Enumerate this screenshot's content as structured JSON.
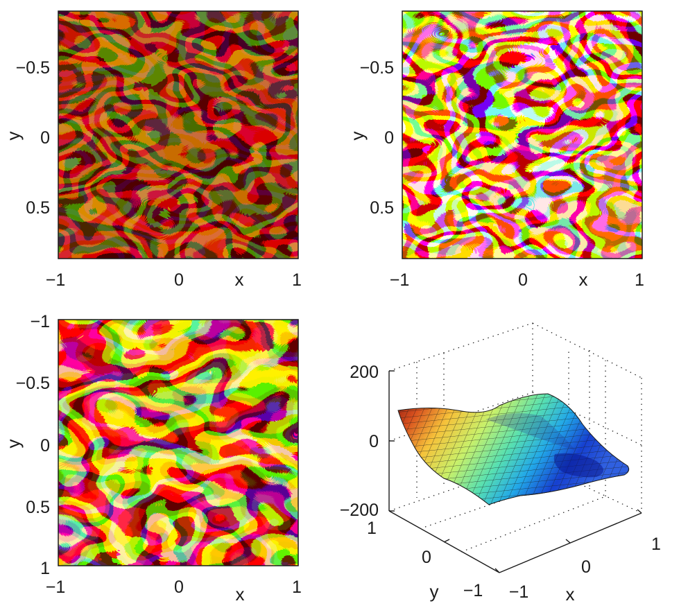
{
  "colors": {
    "axis": "#1a1a1a",
    "background": "#ffffff",
    "hot_colormap": [
      "#200000",
      "#7a0b05",
      "#c3380c",
      "#f08a1c",
      "#fce37a",
      "#ffffff"
    ],
    "jet_colormap": [
      "#00008f",
      "#0050ff",
      "#00d8ff",
      "#7fff7f",
      "#ffe000",
      "#ff3000",
      "#800000"
    ]
  },
  "chart_data": [
    {
      "type": "heatmap",
      "panel": "top-left",
      "description_colormap": "hot",
      "title": "",
      "xlabel": "x",
      "ylabel": "y",
      "xlim": [
        -1,
        1
      ],
      "ylim": [
        0.85,
        -0.85
      ],
      "x_ticks": [
        "−1",
        "0",
        "1"
      ],
      "y_ticks": [
        "−0.5",
        "0",
        "0.5"
      ],
      "intensity": "low",
      "grid": false
    },
    {
      "type": "heatmap",
      "panel": "top-right",
      "description_colormap": "hot",
      "title": "",
      "xlabel": "x",
      "ylabel": "y",
      "xlim": [
        -1,
        1
      ],
      "ylim": [
        0.85,
        -0.85
      ],
      "x_ticks": [
        "−1",
        "0",
        "1"
      ],
      "y_ticks": [
        "−0.5",
        "0",
        "0.5"
      ],
      "intensity": "high",
      "grid": false
    },
    {
      "type": "heatmap",
      "panel": "bottom-left",
      "description_colormap": "hot",
      "title": "",
      "xlabel": "x",
      "ylabel": "y",
      "xlim": [
        -1,
        1
      ],
      "ylim": [
        1,
        -1
      ],
      "x_ticks": [
        "−1",
        "0",
        "1"
      ],
      "y_ticks": [
        "−1",
        "−0.5",
        "0",
        "0.5",
        "1"
      ],
      "intensity": "wrapped",
      "grid": false
    },
    {
      "type": "surface",
      "panel": "bottom-right",
      "description_colormap": "jet",
      "title": "",
      "xlabel": "x",
      "ylabel": "y",
      "xlim": [
        -1,
        1
      ],
      "ylim": [
        -1,
        1
      ],
      "zlim": [
        -200,
        200
      ],
      "x_ticks": [
        "−1",
        "0",
        "1"
      ],
      "y_ticks": [
        "−1",
        "0",
        "1"
      ],
      "z_ticks": [
        "−200",
        "0",
        "200"
      ],
      "grid": true
    }
  ]
}
